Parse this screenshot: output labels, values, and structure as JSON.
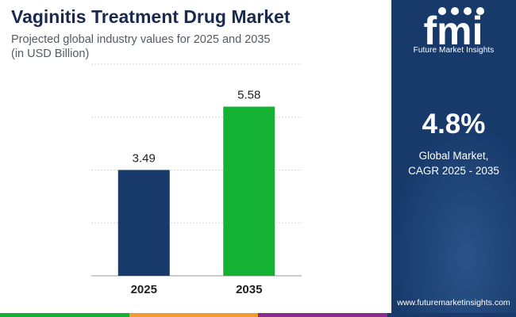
{
  "header": {
    "title": "Vaginitis Treatment Drug Market",
    "subtitle_line1": "Projected global industry values for 2025 and 2035",
    "subtitle_line2": "(in USD Billion)"
  },
  "chart_data": {
    "type": "bar",
    "categories": [
      "2025",
      "2035"
    ],
    "values": [
      3.49,
      5.58
    ],
    "value_labels": [
      "3.49",
      "5.58"
    ],
    "title": "",
    "xlabel": "",
    "ylabel": "",
    "ylim": [
      0,
      6.98
    ],
    "grid": true,
    "bar_colors": [
      "#173a6b",
      "#13b235"
    ]
  },
  "side_panel": {
    "logo_text": "Future Market Insights",
    "logo_icon": "fmi-logo-icon",
    "cagr_value": "4.8%",
    "cagr_label_line1": "Global Market,",
    "cagr_label_line2": "CAGR 2025 - 2035",
    "website": "www.futuremarketinsights.com"
  },
  "colors": {
    "title": "#1a2a4f",
    "panel_bg": "#173a6b",
    "bottom_bar": [
      "#13b235",
      "#f29a2e",
      "#8a2a8e",
      "#173a6b"
    ]
  }
}
